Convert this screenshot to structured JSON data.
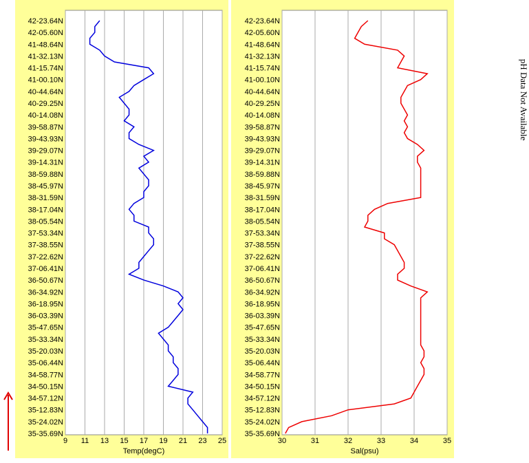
{
  "chart_data": [
    {
      "type": "line",
      "xlabel": "Temp(degC)",
      "color": "#0000dd",
      "xlim": [
        9,
        25
      ],
      "xticks": [
        9,
        11,
        13,
        15,
        17,
        19,
        21,
        23,
        25
      ],
      "grid": true,
      "categories": [
        "42-23.64N",
        null,
        "42-05.60N",
        null,
        "41-48.64N",
        null,
        "41-32.13N",
        null,
        "41-15.74N",
        null,
        "41-00.10N",
        null,
        "40-44.64N",
        null,
        "40-29.25N",
        null,
        "40-14.08N",
        null,
        "39-58.87N",
        null,
        "39-43.93N",
        null,
        "39-29.07N",
        null,
        "39-14.31N",
        null,
        "38-59.88N",
        null,
        "38-45.97N",
        null,
        "38-31.59N",
        null,
        "38-17.04N",
        null,
        "38-05.54N",
        null,
        "37-53.34N",
        null,
        "37-38.55N",
        null,
        "37-22.62N",
        null,
        "37-06.41N",
        null,
        "36-50.67N",
        null,
        "36-34.92N",
        null,
        "36-18.95N",
        null,
        "36-03.39N",
        null,
        "35-47.65N",
        null,
        "35-33.34N",
        null,
        "35-20.03N",
        null,
        "35-06.44N",
        null,
        "34-58.77N",
        null,
        "34-50.15N",
        null,
        "34-57.12N",
        null,
        "35-12.83N",
        null,
        "35-24.02N",
        null,
        "35-35.69N"
      ],
      "values": [
        12.5,
        12,
        12,
        11.5,
        11.5,
        12.5,
        13,
        14,
        17.5,
        18,
        17,
        16,
        15.5,
        14.5,
        15,
        15.5,
        15.5,
        15,
        16,
        15.5,
        15.5,
        16.5,
        18,
        17,
        17.5,
        16.5,
        17,
        17.5,
        17.5,
        17,
        17,
        16,
        15.5,
        16,
        16,
        17.5,
        17.5,
        18,
        18,
        17.5,
        17,
        16.5,
        16.5,
        15.5,
        17,
        19,
        20.5,
        21,
        20.5,
        21,
        20.5,
        20,
        19.5,
        18.5,
        19,
        19.5,
        19.5,
        20,
        20,
        20.5,
        20.5,
        20,
        19.5,
        22,
        21.5,
        21.5,
        22,
        22.5,
        23,
        23.5,
        23.5
      ]
    },
    {
      "type": "line",
      "xlabel": "Sal(psu)",
      "color": "#ee0000",
      "xlim": [
        30,
        35
      ],
      "xticks": [
        30,
        31,
        32,
        33,
        34,
        35
      ],
      "grid": true,
      "categories": [
        "42-23.64N",
        null,
        "42-05.60N",
        null,
        "41-48.64N",
        null,
        "41-32.13N",
        null,
        "41-15.74N",
        null,
        "41-00.10N",
        null,
        "40-44.64N",
        null,
        "40-29.25N",
        null,
        "40-14.08N",
        null,
        "39-58.87N",
        null,
        "39-43.93N",
        null,
        "39-29.07N",
        null,
        "39-14.31N",
        null,
        "38-59.88N",
        null,
        "38-45.97N",
        null,
        "38-31.59N",
        null,
        "38-17.04N",
        null,
        "38-05.54N",
        null,
        "37-53.34N",
        null,
        "37-38.55N",
        null,
        "37-22.62N",
        null,
        "37-06.41N",
        null,
        "36-50.67N",
        null,
        "36-34.92N",
        null,
        "36-18.95N",
        null,
        "36-03.39N",
        null,
        "35-47.65N",
        null,
        "35-33.34N",
        null,
        "35-20.03N",
        null,
        "35-06.44N",
        null,
        "34-58.77N",
        null,
        "34-50.15N",
        null,
        "34-57.12N",
        null,
        "35-12.83N",
        null,
        "35-24.02N",
        null,
        "35-35.69N"
      ],
      "values": [
        32.6,
        32.4,
        32.3,
        32.2,
        32.5,
        33.5,
        33.7,
        33.6,
        33.5,
        34.4,
        34.2,
        33.8,
        33.7,
        33.6,
        33.6,
        33.7,
        33.8,
        33.7,
        33.8,
        33.7,
        33.8,
        34.1,
        34.3,
        34.1,
        34.1,
        34.2,
        34.2,
        34.2,
        34.2,
        34.2,
        34.2,
        33.2,
        32.8,
        32.6,
        32.6,
        32.5,
        33.1,
        33.1,
        33.4,
        33.5,
        33.6,
        33.7,
        33.7,
        33.5,
        33.5,
        33.9,
        34.4,
        34.2,
        34.2,
        34.2,
        34.2,
        34.2,
        34.2,
        34.2,
        34.2,
        34.2,
        34.3,
        34.3,
        34.2,
        34.3,
        34.3,
        34.2,
        34.1,
        34.0,
        33.9,
        33.4,
        32.0,
        31.5,
        30.6,
        30.2,
        30.1
      ]
    }
  ],
  "annotation": "pH Data Not Available"
}
